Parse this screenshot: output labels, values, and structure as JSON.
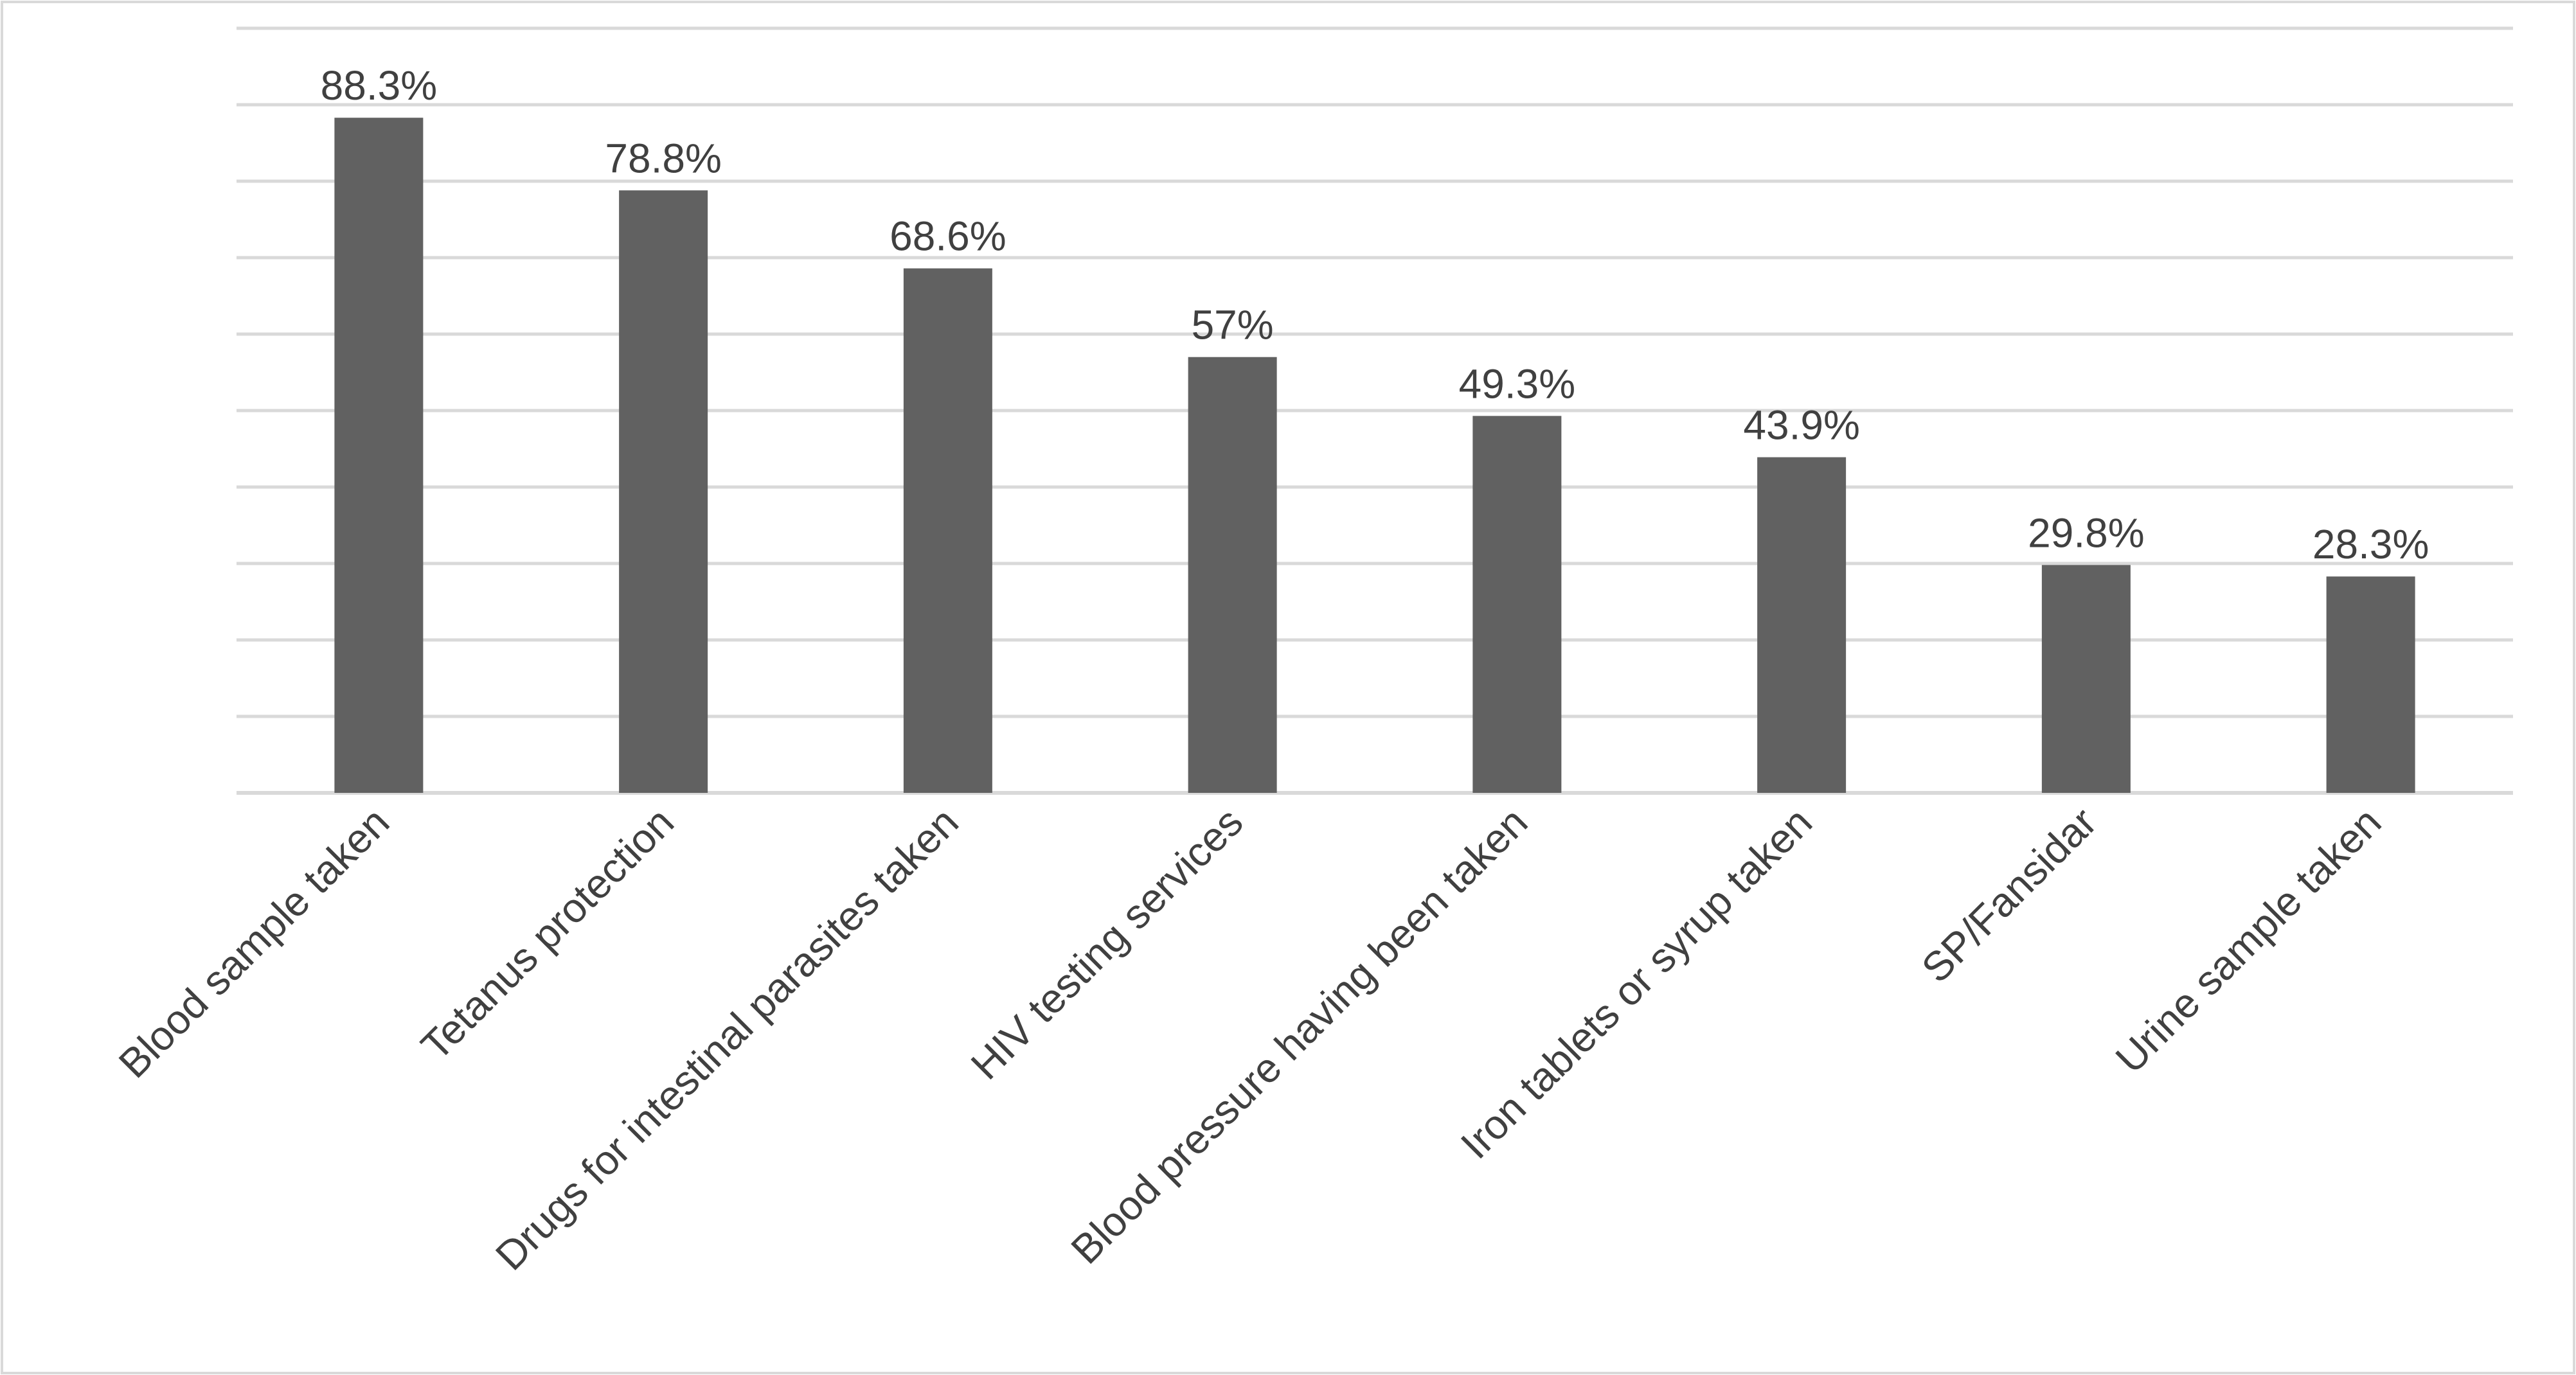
{
  "chart_data": {
    "type": "bar",
    "categories": [
      "Blood sample taken",
      "Tetanus protection",
      "Drugs for intestinal parasites taken",
      "HIV testing services",
      "Blood pressure having been taken",
      "Iron tablets or syrup taken",
      "SP/Fansidar",
      "Urine sample taken"
    ],
    "values": [
      88.3,
      78.8,
      68.6,
      57,
      49.3,
      43.9,
      29.8,
      28.3
    ],
    "data_labels": [
      "88.3%",
      "78.8%",
      "68.6%",
      "57%",
      "49.3%",
      "43.9%",
      "29.8%",
      "28.3%"
    ],
    "title": "",
    "xlabel": "",
    "ylabel": "",
    "ylim": [
      0,
      100
    ],
    "gridlines": [
      0,
      10,
      20,
      30,
      40,
      50,
      60,
      70,
      80,
      90,
      100
    ],
    "grid": true,
    "y_tick_labels_shown": false,
    "legend": "none",
    "colors": {
      "bar": "#616161",
      "grid": "#d9d9d9",
      "text": "#404040",
      "frame": "#d9d9d9",
      "background": "#ffffff"
    }
  }
}
